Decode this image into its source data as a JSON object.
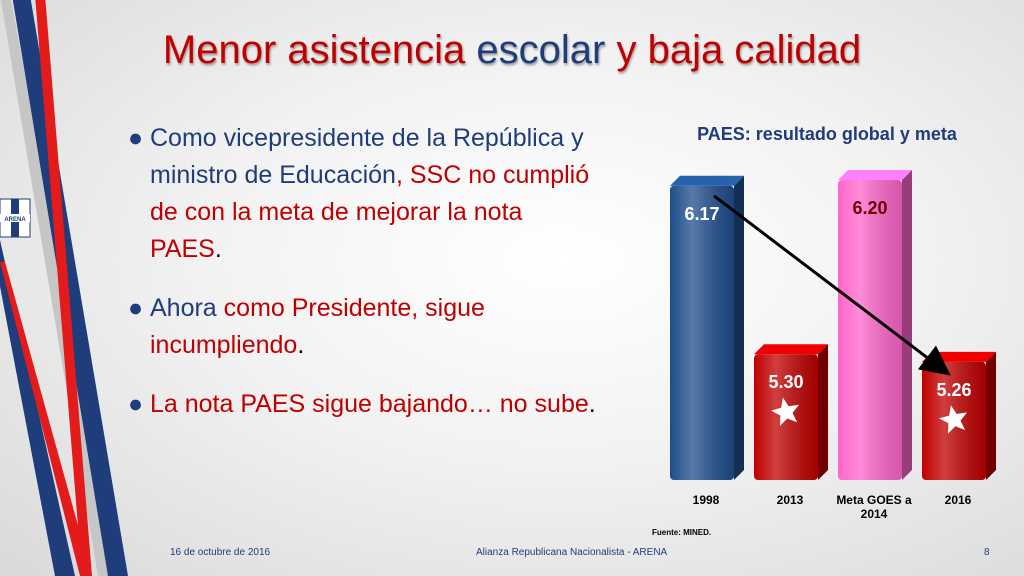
{
  "slide": {
    "title_parts": [
      "Menor asistencia",
      "escolar",
      "y",
      "baja calidad"
    ],
    "bullets": [
      {
        "parts": [
          "Como vicepresidente de la República y ministro de Educación",
          ",",
          " SSC no cumplió de con la meta de mejorar la nota PAES",
          "."
        ]
      },
      {
        "parts": [
          "Ahora ",
          "como Presidente, sigue incumpliendo",
          "."
        ]
      },
      {
        "parts": [
          "La nota PAES sigue bajando… no sube",
          "."
        ]
      }
    ],
    "footer": {
      "date": "16 de octubre de 2016",
      "center": "Alianza Republicana Nacionalista - ARENA",
      "page": "8"
    },
    "source": "Fuente: MINED.",
    "logo_text": "ARENA"
  },
  "chart_data": {
    "type": "bar",
    "title": "PAES: resultado global y meta",
    "categories": [
      "1998",
      "2013",
      "Meta GOES a 2014",
      "2016"
    ],
    "values": [
      6.17,
      5.3,
      6.2,
      5.26
    ],
    "labels": [
      "6.17",
      "5.30",
      "6.20",
      "5.26"
    ],
    "bar_colors": [
      "#1f4e8c",
      "#c00000",
      "#ff66cc",
      "#c00000"
    ],
    "star_markers": [
      false,
      true,
      false,
      true
    ],
    "trend_arrow": {
      "from": "1998",
      "to": "2016"
    },
    "ylim": [
      4.65,
      6.2
    ]
  },
  "colors": {
    "title_red": "#c00000",
    "title_blue": "#1f3d7a",
    "text_blue": "#1f3d7a",
    "stripe_blue": "#1f3d7a",
    "stripe_red": "#e31b1b"
  }
}
